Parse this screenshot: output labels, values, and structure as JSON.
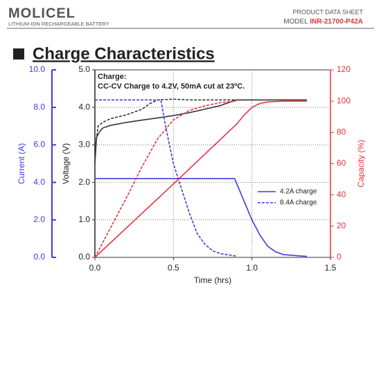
{
  "header": {
    "logo": "MOLICEL",
    "tagline": "LITHIUM-ION RECHARGEABLE BATTERY",
    "doc_type": "PRODUCT DATA SHEET",
    "model_label": "MODEL",
    "model": "INR-21700-P42A"
  },
  "section_title": "Charge Characteristics",
  "chart_data": {
    "type": "line",
    "annotations": [
      "Charge:",
      "CC-CV Charge to 4.2V, 50mA cut at 23ºC."
    ],
    "xlabel": "Time (hrs)",
    "ylabel": "Voltage (V)",
    "y2label": "Capacity (%)",
    "y3label": "Current (A)",
    "xlim": [
      0,
      1.5
    ],
    "xticks": [
      {
        "value": 0,
        "label": "0.0"
      },
      {
        "value": 0.5,
        "label": "0.5"
      },
      {
        "value": 1,
        "label": "1.0"
      },
      {
        "value": 1.5,
        "label": "1.5"
      }
    ],
    "ylim": [
      0,
      5
    ],
    "yticks": [
      {
        "value": 0,
        "label": "0.0"
      },
      {
        "value": 1,
        "label": "1.0"
      },
      {
        "value": 2,
        "label": "2.0"
      },
      {
        "value": 3,
        "label": "3.0"
      },
      {
        "value": 4,
        "label": "4.0"
      },
      {
        "value": 5,
        "label": "5.0"
      }
    ],
    "y2lim": [
      0,
      120
    ],
    "y2ticks": [
      0,
      20,
      40,
      60,
      80,
      100,
      120
    ],
    "y3lim": [
      0,
      10
    ],
    "y3ticks": [
      {
        "value": 0,
        "label": "0.0"
      },
      {
        "value": 2,
        "label": "2.0"
      },
      {
        "value": 4,
        "label": "4.0"
      },
      {
        "value": 6,
        "label": "6.0"
      },
      {
        "value": 8,
        "label": "8.0"
      },
      {
        "value": 10,
        "label": "10.0"
      }
    ],
    "axis_colors": {
      "y": "#222222",
      "y2": "#e8323c",
      "y3": "#3c3cdc"
    },
    "grid": true,
    "legend": "lower right",
    "series": [
      {
        "axis": "y",
        "color": "#333333",
        "dashed": false,
        "x": [
          0,
          0.01,
          0.03,
          0.05,
          0.1,
          0.2,
          0.3,
          0.4,
          0.5,
          0.6,
          0.7,
          0.8,
          0.9,
          1.0,
          1.1,
          1.2,
          1.35
        ],
        "values": [
          2.5,
          3.2,
          3.35,
          3.45,
          3.52,
          3.6,
          3.66,
          3.72,
          3.78,
          3.86,
          3.95,
          4.05,
          4.2,
          4.2,
          4.2,
          4.2,
          4.2
        ]
      },
      {
        "axis": "y",
        "color": "#333333",
        "dashed": true,
        "x": [
          0,
          0.02,
          0.05,
          0.1,
          0.2,
          0.3,
          0.35,
          0.4,
          0.5,
          0.6,
          0.9
        ],
        "values": [
          2.8,
          3.5,
          3.6,
          3.7,
          3.8,
          3.95,
          4.1,
          4.2,
          4.22,
          4.2,
          4.2
        ]
      },
      {
        "name": "4.2A charge",
        "axis": "y3",
        "color": "#3c3cdc",
        "dashed": false,
        "x": [
          0,
          0.89,
          0.95,
          1.0,
          1.05,
          1.1,
          1.15,
          1.2,
          1.3,
          1.35
        ],
        "values": [
          4.2,
          4.2,
          3.0,
          2.0,
          1.2,
          0.6,
          0.3,
          0.15,
          0.08,
          0.05
        ]
      },
      {
        "name": "8.4A charge",
        "axis": "y3",
        "color": "#3c3cdc",
        "dashed": true,
        "x": [
          0,
          0.42,
          0.45,
          0.5,
          0.55,
          0.6,
          0.65,
          0.7,
          0.75,
          0.8,
          0.9
        ],
        "values": [
          8.4,
          8.4,
          7.0,
          5.0,
          3.7,
          2.4,
          1.3,
          0.7,
          0.35,
          0.2,
          0.07
        ]
      },
      {
        "axis": "y2",
        "color": "#e8323c",
        "dashed": false,
        "x": [
          0,
          0.5,
          0.9,
          0.95,
          1.0,
          1.05,
          1.1,
          1.2,
          1.35
        ],
        "values": [
          0,
          47,
          85,
          91,
          96,
          98.5,
          99.5,
          100,
          100
        ]
      },
      {
        "axis": "y2",
        "color": "#e8323c",
        "dashed": true,
        "x": [
          0,
          0.1,
          0.2,
          0.3,
          0.4,
          0.5,
          0.6,
          0.7,
          0.8,
          0.9
        ],
        "values": [
          0,
          19,
          38,
          58,
          76,
          88,
          94,
          97,
          99,
          100
        ]
      }
    ]
  }
}
